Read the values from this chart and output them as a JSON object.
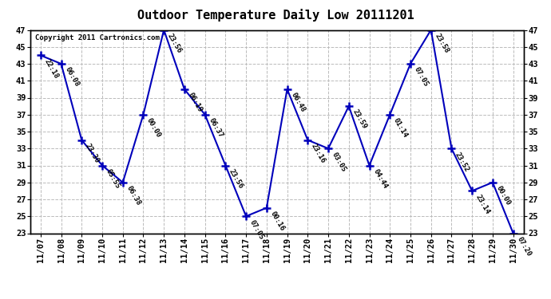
{
  "title": "Outdoor Temperature Daily Low 20111201",
  "copyright": "Copyright 2011 Cartronics.com",
  "points": [
    {
      "date": "11/07",
      "temp": 44.0,
      "label": "22:18"
    },
    {
      "date": "11/08",
      "temp": 43.0,
      "label": "06:08"
    },
    {
      "date": "11/09",
      "temp": 34.0,
      "label": "23:30"
    },
    {
      "date": "11/10",
      "temp": 31.0,
      "label": "05:55"
    },
    {
      "date": "11/11",
      "temp": 29.0,
      "label": "06:38"
    },
    {
      "date": "11/12",
      "temp": 37.0,
      "label": "00:00"
    },
    {
      "date": "11/13",
      "temp": 47.0,
      "label": "23:56"
    },
    {
      "date": "11/14",
      "temp": 40.0,
      "label": "06:19"
    },
    {
      "date": "11/15",
      "temp": 37.0,
      "label": "06:37"
    },
    {
      "date": "11/16",
      "temp": 31.0,
      "label": "23:56"
    },
    {
      "date": "11/17",
      "temp": 25.0,
      "label": "07:05"
    },
    {
      "date": "11/18",
      "temp": 26.0,
      "label": "00:16"
    },
    {
      "date": "11/19",
      "temp": 40.0,
      "label": "06:48"
    },
    {
      "date": "11/20",
      "temp": 34.0,
      "label": "23:16"
    },
    {
      "date": "11/21",
      "temp": 33.0,
      "label": "03:05"
    },
    {
      "date": "11/22",
      "temp": 38.0,
      "label": "23:59"
    },
    {
      "date": "11/23",
      "temp": 31.0,
      "label": "04:44"
    },
    {
      "date": "11/24",
      "temp": 37.0,
      "label": "01:14"
    },
    {
      "date": "11/25",
      "temp": 43.0,
      "label": "07:05"
    },
    {
      "date": "11/26",
      "temp": 47.0,
      "label": "23:58"
    },
    {
      "date": "11/27",
      "temp": 33.0,
      "label": "23:52"
    },
    {
      "date": "11/28",
      "temp": 28.0,
      "label": "23:14"
    },
    {
      "date": "11/29",
      "temp": 29.0,
      "label": "00:00"
    },
    {
      "date": "11/30",
      "temp": 23.0,
      "label": "07:20"
    }
  ],
  "ylim": [
    23.0,
    47.0
  ],
  "yticks": [
    23.0,
    25.0,
    27.0,
    29.0,
    31.0,
    33.0,
    35.0,
    37.0,
    39.0,
    41.0,
    43.0,
    45.0,
    47.0
  ],
  "line_color": "#0000bb",
  "marker_color": "#0000bb",
  "bg_color": "#ffffff",
  "grid_color": "#bbbbbb",
  "title_fontsize": 11,
  "label_fontsize": 6.5,
  "tick_fontsize": 7.5,
  "copyright_fontsize": 6.5
}
